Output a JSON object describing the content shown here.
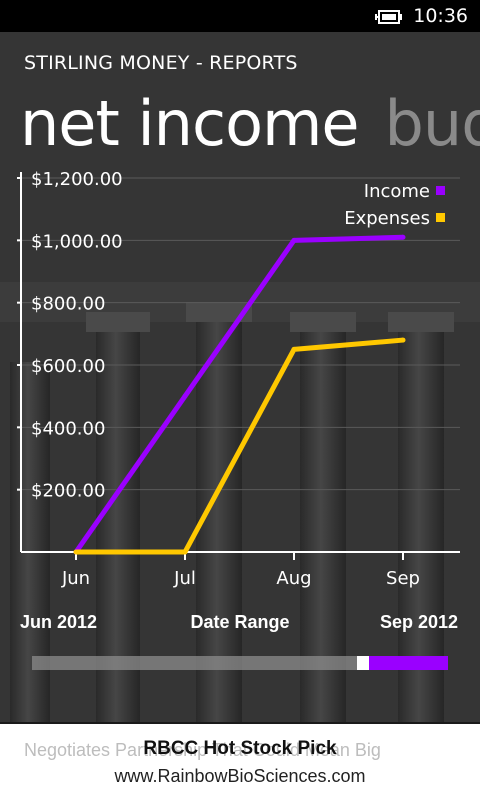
{
  "status_bar": {
    "time": "10:36",
    "battery_icon": "battery-charging-icon"
  },
  "app": {
    "title": "STIRLING MONEY - REPORTS"
  },
  "pivot": {
    "active": "net income",
    "next": "budget"
  },
  "chart_data": {
    "type": "line",
    "categories": [
      "Jun",
      "Jul",
      "Aug",
      "Sep"
    ],
    "y_ticks": [
      "$200.00",
      "$400.00",
      "$600.00",
      "$800.00",
      "$1,000.00",
      "$1,200.00"
    ],
    "ylim": [
      0,
      1200
    ],
    "grid": true,
    "legend_placement": "top-right",
    "series": [
      {
        "name": "Income",
        "color": "#9a00ff",
        "values": [
          0,
          500,
          1000,
          1010
        ]
      },
      {
        "name": "Expenses",
        "color": "#ffc800",
        "values": [
          0,
          0,
          650,
          680
        ]
      }
    ]
  },
  "date_range": {
    "start": "Jun 2012",
    "label": "Date Range",
    "end": "Sep 2012",
    "selected_start_fraction": 0.81,
    "selected_end_fraction": 1.0
  },
  "ad": {
    "ticker_text": "Negotiates Partnership That Could Mean Big",
    "title": "RBCC Hot Stock Pick",
    "url": "www.RainbowBioSciences.com"
  }
}
